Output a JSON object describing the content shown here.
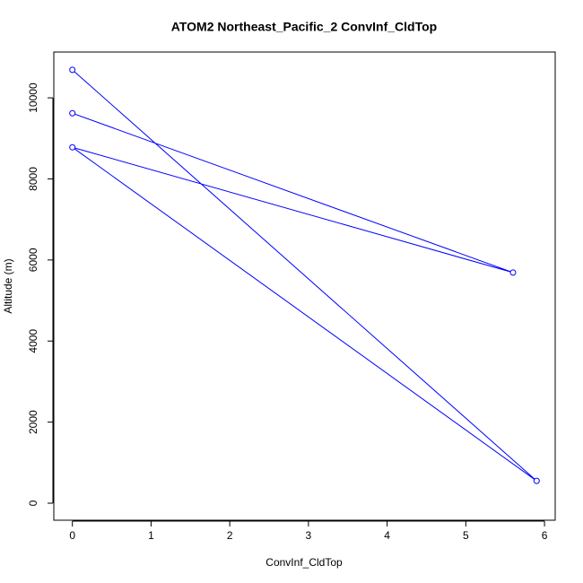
{
  "chart_data": {
    "type": "line",
    "title": "ATOM2 Northeast_Pacific_2 ConvInf_CldTop",
    "x_label": "ConvInf_CldTop",
    "y_label": "Altitude (m)",
    "series": [
      {
        "color": "#0000ff",
        "x": [
          0,
          5.9,
          0,
          5.6,
          0
        ],
        "values": [
          10690,
          550,
          8780,
          5690,
          9620
        ]
      }
    ],
    "xlim": [
      -0.236,
      6.136
    ],
    "ylim": [
      -420,
      11130
    ],
    "xticks": [
      0,
      1,
      2,
      3,
      4,
      5,
      6
    ],
    "yticks": [
      0,
      2000,
      4000,
      6000,
      8000,
      10000
    ]
  }
}
